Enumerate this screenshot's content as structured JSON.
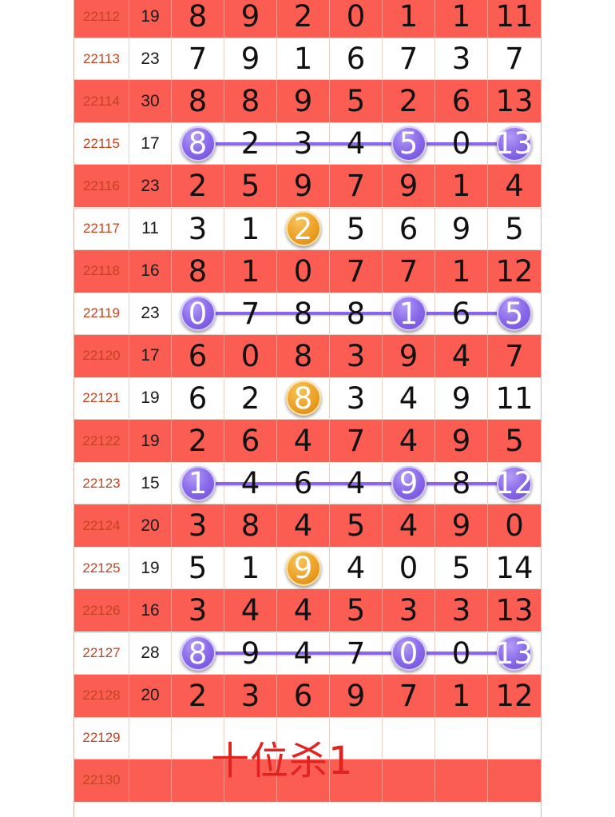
{
  "rows": [
    {
      "issue": "22112",
      "sum": "19",
      "digits": [
        "8",
        "9",
        "2",
        "0",
        "1",
        "1",
        "11"
      ]
    },
    {
      "issue": "22113",
      "sum": "23",
      "digits": [
        "7",
        "9",
        "1",
        "6",
        "7",
        "3",
        "7"
      ]
    },
    {
      "issue": "22114",
      "sum": "30",
      "digits": [
        "8",
        "8",
        "9",
        "5",
        "2",
        "6",
        "13"
      ]
    },
    {
      "issue": "22115",
      "sum": "17",
      "digits": [
        "8",
        "2",
        "3",
        "4",
        "5",
        "0",
        "13"
      ],
      "highlight": [
        0,
        4,
        6
      ],
      "color": "purple",
      "linked": true
    },
    {
      "issue": "22116",
      "sum": "23",
      "digits": [
        "2",
        "5",
        "9",
        "7",
        "9",
        "1",
        "4"
      ]
    },
    {
      "issue": "22117",
      "sum": "11",
      "digits": [
        "3",
        "1",
        "2",
        "5",
        "6",
        "9",
        "5"
      ],
      "highlight": [
        2
      ],
      "color": "orange"
    },
    {
      "issue": "22118",
      "sum": "16",
      "digits": [
        "8",
        "1",
        "0",
        "7",
        "7",
        "1",
        "12"
      ]
    },
    {
      "issue": "22119",
      "sum": "23",
      "digits": [
        "0",
        "7",
        "8",
        "8",
        "1",
        "6",
        "5"
      ],
      "highlight": [
        0,
        4,
        6
      ],
      "color": "purple",
      "linked": true
    },
    {
      "issue": "22120",
      "sum": "17",
      "digits": [
        "6",
        "0",
        "8",
        "3",
        "9",
        "4",
        "7"
      ]
    },
    {
      "issue": "22121",
      "sum": "19",
      "digits": [
        "6",
        "2",
        "8",
        "3",
        "4",
        "9",
        "11"
      ],
      "highlight": [
        2
      ],
      "color": "orange"
    },
    {
      "issue": "22122",
      "sum": "19",
      "digits": [
        "2",
        "6",
        "4",
        "7",
        "4",
        "9",
        "5"
      ]
    },
    {
      "issue": "22123",
      "sum": "15",
      "digits": [
        "1",
        "4",
        "6",
        "4",
        "9",
        "8",
        "12"
      ],
      "highlight": [
        0,
        4,
        6
      ],
      "color": "purple",
      "linked": true
    },
    {
      "issue": "22124",
      "sum": "20",
      "digits": [
        "3",
        "8",
        "4",
        "5",
        "4",
        "9",
        "0"
      ]
    },
    {
      "issue": "22125",
      "sum": "19",
      "digits": [
        "5",
        "1",
        "9",
        "4",
        "0",
        "5",
        "14"
      ],
      "highlight": [
        2
      ],
      "color": "orange"
    },
    {
      "issue": "22126",
      "sum": "16",
      "digits": [
        "3",
        "4",
        "4",
        "5",
        "3",
        "3",
        "13"
      ]
    },
    {
      "issue": "22127",
      "sum": "28",
      "digits": [
        "8",
        "9",
        "4",
        "7",
        "0",
        "0",
        "13"
      ],
      "highlight": [
        0,
        4,
        6
      ],
      "color": "purple",
      "linked": true
    },
    {
      "issue": "22128",
      "sum": "20",
      "digits": [
        "2",
        "3",
        "6",
        "9",
        "7",
        "1",
        "12"
      ]
    },
    {
      "issue": "22129",
      "sum": "",
      "digits": [
        "",
        "",
        "",
        "",
        "",
        "",
        ""
      ]
    },
    {
      "issue": "22130",
      "sum": "",
      "digits": [
        "",
        "",
        "",
        "",
        "",
        "",
        ""
      ]
    }
  ],
  "note": "十位杀1",
  "colors": {
    "row_red": "#fb5d52",
    "issue_text": "#c2441f",
    "ball_purple": "#8a6bea",
    "ball_orange": "#eb9f23",
    "note_red": "#e0231e"
  }
}
